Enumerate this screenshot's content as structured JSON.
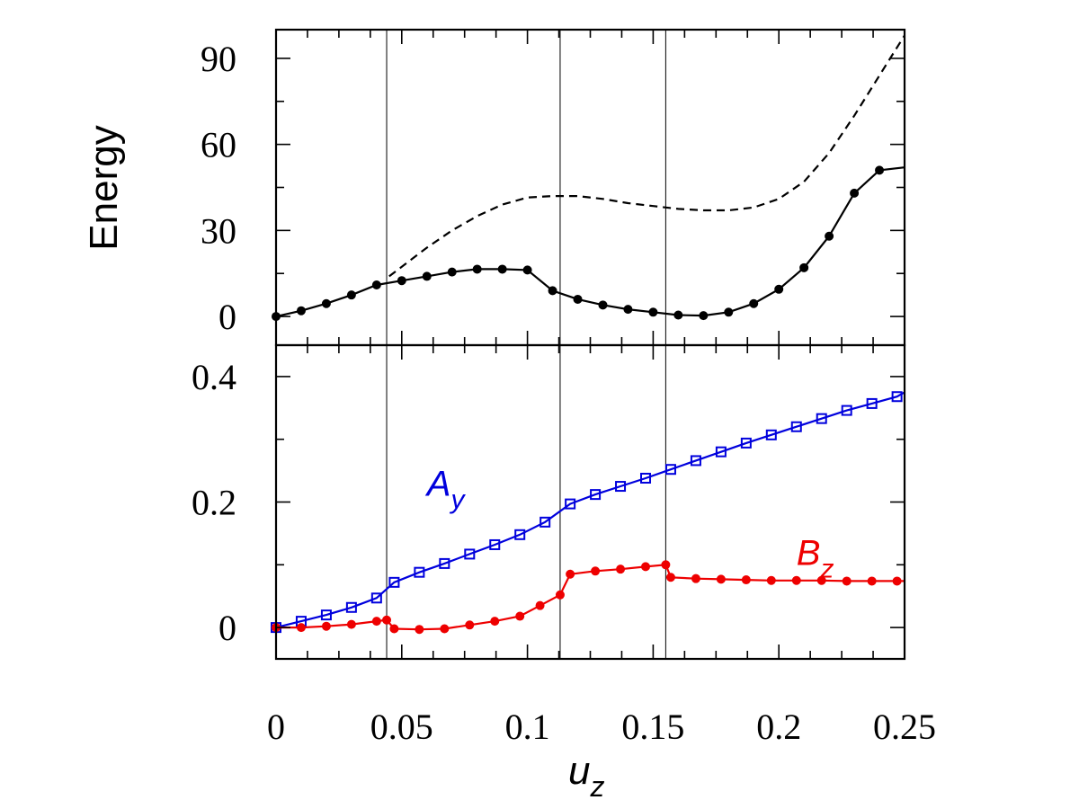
{
  "chart_data": [
    {
      "type": "line",
      "ylabel": "Energy",
      "xlim": [
        0,
        0.25
      ],
      "ylim": [
        -10,
        100
      ],
      "yticks": [
        0,
        30,
        60,
        90
      ],
      "ytick_labels": [
        "0",
        "30",
        "60",
        "90"
      ],
      "vlines": [
        0.044,
        0.113,
        0.155
      ],
      "series": [
        {
          "style": "solid-with-markers",
          "color": "#000000",
          "x": [
            0.0,
            0.01,
            0.02,
            0.03,
            0.04,
            0.05,
            0.06,
            0.07,
            0.08,
            0.09,
            0.1,
            0.11,
            0.12,
            0.13,
            0.14,
            0.15,
            0.16,
            0.17,
            0.18,
            0.19,
            0.2,
            0.21,
            0.22,
            0.23,
            0.24,
            0.25
          ],
          "y": [
            0,
            2,
            4.5,
            7.5,
            11,
            12.5,
            14,
            15.5,
            16.5,
            16.5,
            16.2,
            9,
            6,
            4,
            2.5,
            1.5,
            0.5,
            0.3,
            1.5,
            4.5,
            9.5,
            17,
            28,
            43,
            51,
            52
          ]
        },
        {
          "style": "dashed",
          "color": "#000000",
          "x": [
            0.045,
            0.06,
            0.07,
            0.08,
            0.09,
            0.1,
            0.11,
            0.12,
            0.13,
            0.14,
            0.15,
            0.16,
            0.17,
            0.18,
            0.19,
            0.2,
            0.21,
            0.22,
            0.23,
            0.24,
            0.25
          ],
          "y": [
            14,
            24,
            30,
            35,
            39,
            41.5,
            42,
            42,
            41,
            39.5,
            38.5,
            37.5,
            37,
            37,
            38,
            41,
            47,
            57,
            70,
            84,
            98
          ]
        }
      ]
    },
    {
      "type": "line",
      "xlabel": "u",
      "xlabel_sub": "z",
      "xlim": [
        0,
        0.25
      ],
      "ylim": [
        -0.05,
        0.45
      ],
      "yticks": [
        0,
        0.2,
        0.4
      ],
      "ytick_labels": [
        "0",
        "0.2",
        "0.4"
      ],
      "xticks": [
        0,
        0.05,
        0.1,
        0.15,
        0.2,
        0.25
      ],
      "xtick_labels": [
        "0",
        "0.05",
        "0.1",
        "0.15",
        "0.2",
        "0.25"
      ],
      "vlines": [
        0.044,
        0.113,
        0.155
      ],
      "series": [
        {
          "style": "solid-with-square-markers",
          "color": "#0000dd",
          "label_main": "A",
          "label_sub": "y",
          "label_at": [
            0.06,
            0.21
          ],
          "x": [
            0.0,
            0.01,
            0.02,
            0.03,
            0.04,
            0.047,
            0.057,
            0.067,
            0.077,
            0.087,
            0.097,
            0.107,
            0.117,
            0.127,
            0.137,
            0.147,
            0.157,
            0.167,
            0.177,
            0.187,
            0.197,
            0.207,
            0.217,
            0.227,
            0.237,
            0.247,
            0.25
          ],
          "y": [
            0.0,
            0.01,
            0.02,
            0.032,
            0.047,
            0.072,
            0.088,
            0.102,
            0.117,
            0.132,
            0.148,
            0.168,
            0.197,
            0.212,
            0.225,
            0.238,
            0.252,
            0.266,
            0.28,
            0.294,
            0.307,
            0.32,
            0.333,
            0.346,
            0.357,
            0.368,
            0.375
          ]
        },
        {
          "style": "solid-with-markers",
          "color": "#ee0000",
          "label_main": "B",
          "label_sub": "z",
          "label_at": [
            0.207,
            0.1
          ],
          "x": [
            0.0,
            0.01,
            0.02,
            0.03,
            0.04,
            0.044,
            0.047,
            0.057,
            0.067,
            0.077,
            0.087,
            0.097,
            0.105,
            0.113,
            0.117,
            0.127,
            0.137,
            0.147,
            0.155,
            0.157,
            0.167,
            0.177,
            0.187,
            0.197,
            0.207,
            0.217,
            0.227,
            0.237,
            0.247,
            0.25
          ],
          "y": [
            0.0,
            0.0,
            0.002,
            0.005,
            0.01,
            0.012,
            -0.002,
            -0.003,
            -0.002,
            0.004,
            0.01,
            0.018,
            0.035,
            0.052,
            0.085,
            0.09,
            0.093,
            0.097,
            0.1,
            0.08,
            0.078,
            0.077,
            0.076,
            0.075,
            0.075,
            0.075,
            0.074,
            0.074,
            0.074,
            0.074
          ]
        }
      ]
    }
  ]
}
